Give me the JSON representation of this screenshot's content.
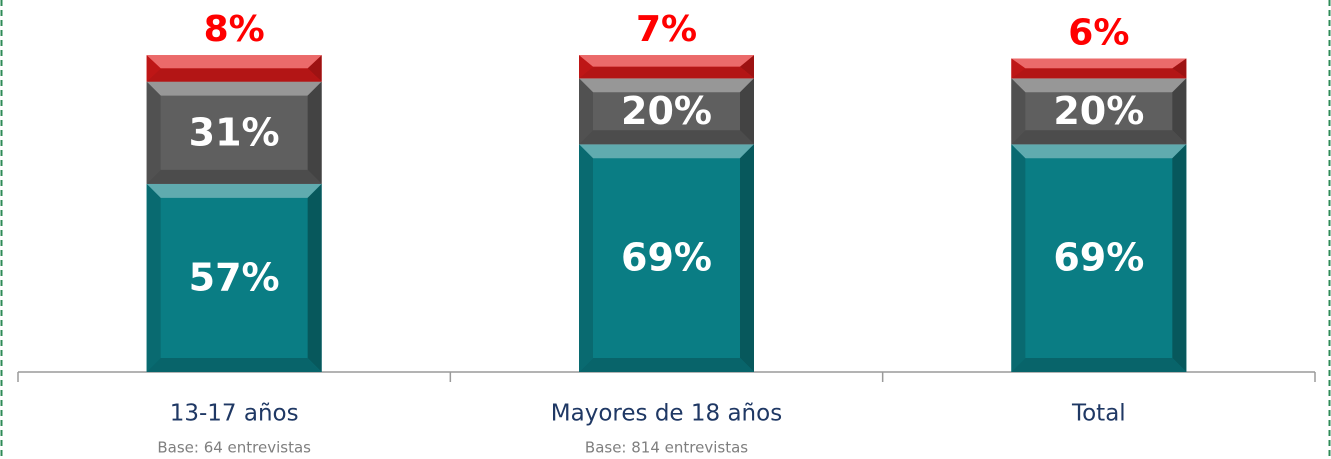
{
  "chart_data": {
    "type": "stacked_bar",
    "categories": [
      "13-17 años",
      "Mayores de 18 años",
      "Total"
    ],
    "category_notes": [
      "Base: 64 entrevistas",
      "Base: 814 entrevistas",
      null
    ],
    "series": [
      {
        "color": "#0a7d84",
        "values": [
          57,
          69,
          69
        ],
        "value_labels": [
          "57%",
          "69%",
          "69%"
        ],
        "label_position": "inside"
      },
      {
        "color": "#5f5f5f",
        "values": [
          31,
          20,
          20
        ],
        "value_labels": [
          "31%",
          "20%",
          "20%"
        ],
        "label_position": "inside"
      },
      {
        "color": "#e01a1a",
        "values": [
          8,
          7,
          6
        ],
        "value_labels": [
          "8%",
          "7%",
          "6%"
        ],
        "label_position": "above"
      }
    ],
    "ylim": [
      0,
      100
    ]
  }
}
